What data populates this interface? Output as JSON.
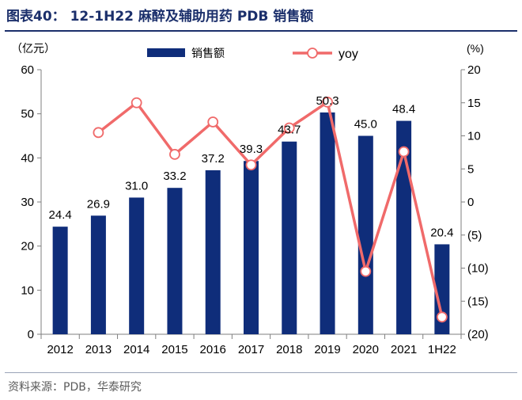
{
  "figure": {
    "title": "图表40： 12-1H22 麻醉及辅助用药 PDB 销售额",
    "source": "资料来源：PDB，华泰研究"
  },
  "chart_data": {
    "type": "bar",
    "categories": [
      "2012",
      "2013",
      "2014",
      "2015",
      "2016",
      "2017",
      "2018",
      "2019",
      "2020",
      "2021",
      "1H22"
    ],
    "series": [
      {
        "name": "销售额",
        "type": "bar",
        "axis": "left",
        "color": "#0f2d7a",
        "values": [
          24.4,
          26.9,
          31.0,
          33.2,
          37.2,
          39.3,
          43.7,
          50.3,
          45.0,
          48.4,
          20.4
        ],
        "labels": [
          "24.4",
          "26.9",
          "31.0",
          "33.2",
          "37.2",
          "39.3",
          "43.7",
          "50.3",
          "45.0",
          "48.4",
          "20.4"
        ]
      },
      {
        "name": "yoy",
        "type": "line",
        "axis": "right",
        "color": "#f06a6a",
        "values": [
          null,
          10.5,
          15.0,
          7.2,
          12.1,
          5.6,
          11.2,
          15.1,
          -10.5,
          7.6,
          -17.4
        ]
      }
    ],
    "y_left": {
      "unit_label": "（亿元）",
      "ylim": [
        0,
        60
      ],
      "ticks": [
        0,
        10,
        20,
        30,
        40,
        50,
        60
      ],
      "tick_labels": [
        "0",
        "10",
        "20",
        "30",
        "40",
        "50",
        "60"
      ]
    },
    "y_right": {
      "unit_label": "(%)",
      "ylim": [
        -20,
        20
      ],
      "ticks": [
        20,
        15,
        10,
        5,
        0,
        -5,
        -10,
        -15,
        -20
      ],
      "tick_labels": [
        "20",
        "15",
        "10",
        "5",
        "0",
        "(5)",
        "(10)",
        "(15)",
        "(20)"
      ]
    },
    "legend": {
      "position": "top",
      "bar_label": "销售额",
      "line_label": "yoy"
    },
    "grid": false
  }
}
